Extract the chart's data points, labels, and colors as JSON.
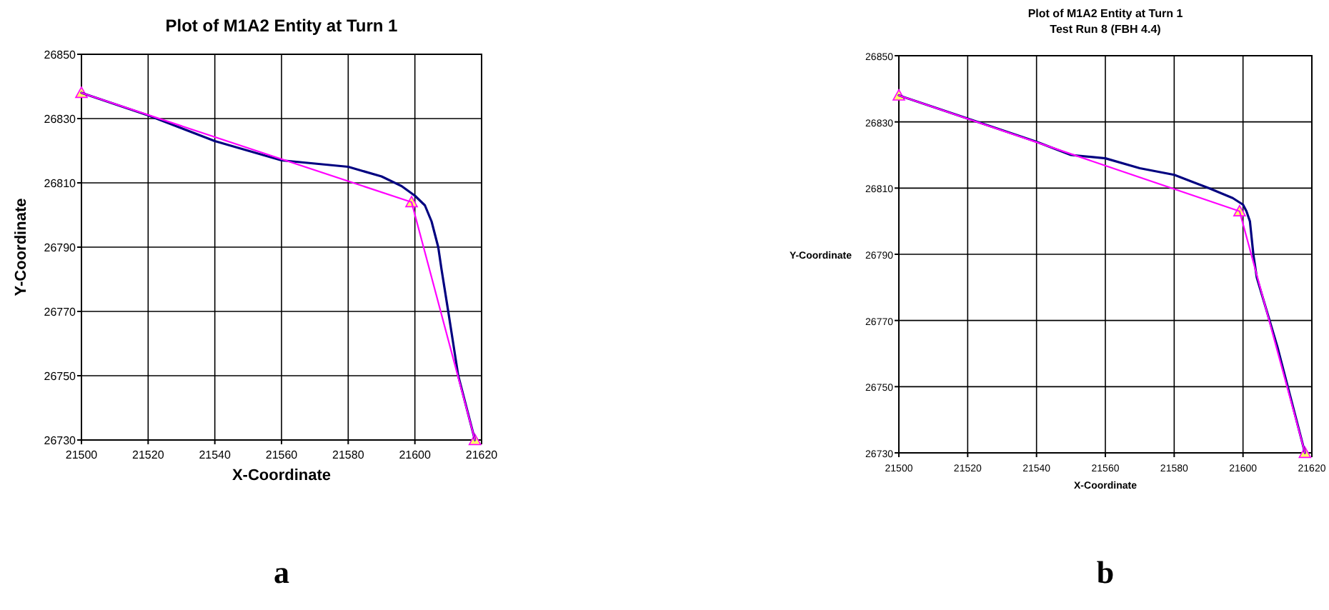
{
  "chart_data": [
    {
      "type": "line",
      "title": "Plot of M1A2 Entity at Turn 1",
      "xlabel": "X-Coordinate",
      "ylabel": "Y-Coordinate",
      "annotations": [
        "a"
      ],
      "xlim": [
        21500,
        21620
      ],
      "xticks": [
        21500,
        21520,
        21540,
        21560,
        21580,
        21600,
        21620
      ],
      "ylim": [
        26730,
        26850
      ],
      "yticks": [
        26730,
        26750,
        26770,
        26790,
        26810,
        26830,
        26850
      ],
      "grid": true,
      "series": [
        {
          "color": "#000080",
          "marker": "none",
          "x": [
            21500,
            21520,
            21540,
            21550,
            21560,
            21570,
            21580,
            21590,
            21596,
            21600,
            21603,
            21605,
            21607,
            21608,
            21610,
            21613,
            21618
          ],
          "values": [
            26838,
            26831,
            26823,
            26820,
            26817,
            26816,
            26815,
            26812,
            26809,
            26806,
            26803,
            26798,
            26790,
            26783,
            26770,
            26750,
            26730
          ]
        },
        {
          "color": "#ff00ff",
          "marker": "triangle",
          "x": [
            21500,
            21599,
            21618
          ],
          "values": [
            26838,
            26804,
            26730
          ]
        }
      ]
    },
    {
      "type": "line",
      "title": "Plot of M1A2 Entity at Turn 1",
      "subtitle": "Test Run 8 (FBH 4.4)",
      "xlabel": "X-Coordinate",
      "ylabel": "Y-Coordinate",
      "annotations": [
        "b"
      ],
      "xlim": [
        21500,
        21620
      ],
      "xticks": [
        21500,
        21520,
        21540,
        21560,
        21580,
        21600,
        21620
      ],
      "ylim": [
        26730,
        26850
      ],
      "yticks": [
        26730,
        26750,
        26770,
        26790,
        26810,
        26830,
        26850
      ],
      "grid": true,
      "series": [
        {
          "color": "#000080",
          "marker": "none",
          "x": [
            21500,
            21520,
            21540,
            21550,
            21560,
            21570,
            21580,
            21590,
            21597,
            21600,
            21601,
            21602,
            21603,
            21604,
            21610,
            21618
          ],
          "values": [
            26838,
            26831,
            26824,
            26820,
            26819,
            26816,
            26814,
            26810,
            26807,
            26805,
            26803,
            26800,
            26790,
            26783,
            26762,
            26730
          ]
        },
        {
          "color": "#ff00ff",
          "marker": "triangle",
          "x": [
            21500,
            21599,
            21618
          ],
          "values": [
            26838,
            26803,
            26730
          ]
        }
      ]
    }
  ]
}
